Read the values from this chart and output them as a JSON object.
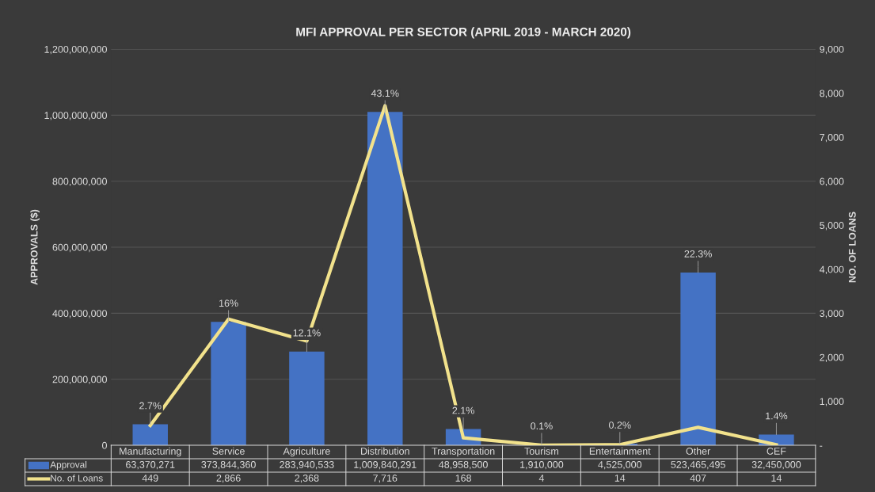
{
  "chart_data": {
    "type": "bar",
    "title": "MFI APPROVAL PER SECTOR (APRIL 2019 - MARCH 2020)",
    "categories": [
      "Manufacturing",
      "Service",
      "Agriculture",
      "Distribution",
      "Transportation",
      "Tourism",
      "Entertainment",
      "Other",
      "CEF"
    ],
    "series": [
      {
        "name": "Approval",
        "color": "#4472c4",
        "values": [
          63370271,
          373844360,
          283940533,
          1009840291,
          48958500,
          1910000,
          4525000,
          523465495,
          32450000
        ],
        "value_labels": [
          "63,370,271",
          "373,844,360",
          "283,940,533",
          "1,009,840,291",
          "48,958,500",
          "1,910,000",
          "4,525,000",
          "523,465,495",
          "32,450,000"
        ]
      },
      {
        "name": "No. of Loans",
        "type": "line",
        "axis": "y2",
        "color": "#f2e28c",
        "values": [
          449,
          2866,
          2368,
          7716,
          168,
          4,
          14,
          407,
          14
        ],
        "value_labels": [
          "449",
          "2,866",
          "2,368",
          "7,716",
          "168",
          "4",
          "14",
          "407",
          "14"
        ]
      }
    ],
    "annotations": [
      {
        "text": "2.7%",
        "x": "Manufacturing",
        "y": 63370271
      },
      {
        "text": "16%",
        "x": "Service",
        "y": 373844360
      },
      {
        "text": "12.1%",
        "x": "Agriculture",
        "y": 283940533
      },
      {
        "text": "43.1%",
        "x": "Distribution",
        "y": 1009840291
      },
      {
        "text": "2.1%",
        "x": "Transportation",
        "y": 48958500
      },
      {
        "text": "0.1%",
        "x": "Tourism",
        "y": 1910000
      },
      {
        "text": "0.2%",
        "x": "Entertainment",
        "y": 4525000
      },
      {
        "text": "22.3%",
        "x": "Other",
        "y": 523465495
      },
      {
        "text": "1.4%",
        "x": "CEF",
        "y": 32450000
      }
    ],
    "ylabel": "APPROVALS ($)",
    "y2label": "NO. OF LOANS",
    "ylim": [
      0,
      1200000000
    ],
    "yticks": [
      {
        "value": 0,
        "label": "0"
      },
      {
        "value": 200000000,
        "label": "200,000,000"
      },
      {
        "value": 400000000,
        "label": "400,000,000"
      },
      {
        "value": 600000000,
        "label": "600,000,000"
      },
      {
        "value": 800000000,
        "label": "800,000,000"
      },
      {
        "value": 1000000000,
        "label": "1,000,000,000"
      },
      {
        "value": 1200000000,
        "label": "1,200,000,000"
      }
    ],
    "y2lim": [
      0,
      9000
    ],
    "y2ticks": [
      {
        "value": 0,
        "label": "-"
      },
      {
        "value": 1000,
        "label": "1,000"
      },
      {
        "value": 2000,
        "label": "2,000"
      },
      {
        "value": 3000,
        "label": "3,000"
      },
      {
        "value": 4000,
        "label": "4,000"
      },
      {
        "value": 5000,
        "label": "5,000"
      },
      {
        "value": 6000,
        "label": "6,000"
      },
      {
        "value": 7000,
        "label": "7,000"
      },
      {
        "value": 8000,
        "label": "8,000"
      },
      {
        "value": 9000,
        "label": "9,000"
      }
    ],
    "grid": "y",
    "legend": "bottom",
    "marker": "none",
    "line_style": "solid"
  }
}
